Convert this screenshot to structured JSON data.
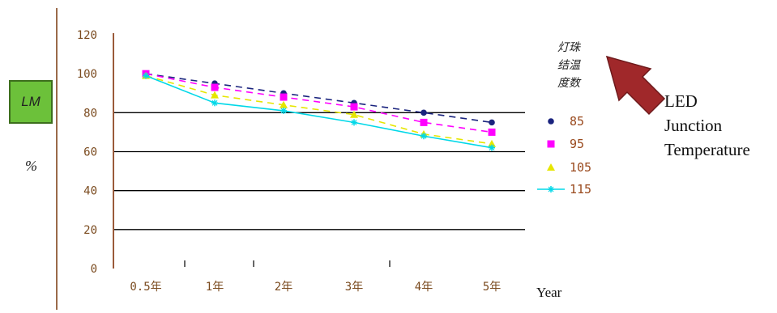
{
  "chart_data": {
    "type": "line",
    "categories": [
      "0.5年",
      "1年",
      "2年",
      "3年",
      "4年",
      "5年"
    ],
    "yticks": [
      "0",
      "20",
      "40",
      "60",
      "80",
      "100",
      "120"
    ],
    "ylim": [
      0,
      120
    ],
    "ylabel_top": "LM",
    "ylabel_bottom": "%",
    "xunit": "Year",
    "legend_title": [
      "灯珠",
      "结温",
      "度数"
    ],
    "legend_position": "right",
    "grid": "horizontal at 20, 40, 60, 80",
    "series": [
      {
        "name": "85",
        "color": "#1a237e",
        "marker": "circle",
        "dash": "8,6",
        "values": [
          100,
          95,
          90,
          85,
          80,
          75
        ]
      },
      {
        "name": "95",
        "color": "#ff00ff",
        "marker": "square",
        "dash": "8,6",
        "values": [
          100,
          93,
          88,
          83,
          75,
          70
        ]
      },
      {
        "name": "105",
        "color": "#e6e600",
        "marker": "triangle",
        "dash": "8,6",
        "values": [
          99,
          89,
          84,
          79,
          69,
          64
        ]
      },
      {
        "name": "115",
        "color": "#00d8e8",
        "marker": "star",
        "dash": "",
        "values": [
          99,
          85,
          81,
          75,
          68,
          62
        ]
      }
    ]
  },
  "annotation": {
    "lines": [
      "LED",
      "Junction",
      "Temperature"
    ],
    "arrow_color": "#a0282a"
  }
}
